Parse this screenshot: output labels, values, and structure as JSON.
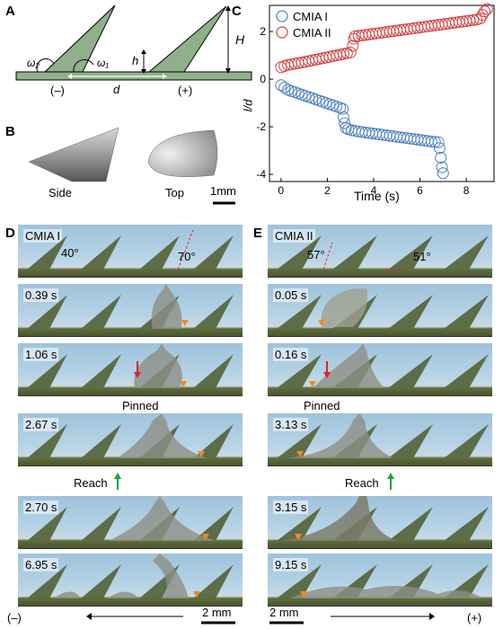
{
  "panels": {
    "a": "A",
    "b": "B",
    "c": "C",
    "d": "D",
    "e": "E"
  },
  "panel_a": {
    "omega2": "ω₂",
    "omega1": "ω₁",
    "h": "h",
    "H": "H",
    "d": "d",
    "minus": "(–)",
    "plus": "(+)"
  },
  "panel_b": {
    "side": "Side",
    "top": "Top",
    "scale": "1mm"
  },
  "chart_data": {
    "type": "scatter",
    "xlabel": "Time (s)",
    "ylabel": "l/d",
    "xlim": [
      -0.5,
      9.2
    ],
    "ylim": [
      -4.3,
      3.1
    ],
    "xticks": [
      0,
      2,
      4,
      6,
      8
    ],
    "yticks": [
      -4,
      -2,
      0,
      2
    ],
    "legend_position": "top-left",
    "series": [
      {
        "name": "CMIA I",
        "color": "#4f7fbf",
        "points": [
          [
            0.0,
            -0.25
          ],
          [
            0.15,
            -0.35
          ],
          [
            0.3,
            -0.45
          ],
          [
            0.45,
            -0.5
          ],
          [
            0.6,
            -0.55
          ],
          [
            0.75,
            -0.6
          ],
          [
            0.9,
            -0.65
          ],
          [
            1.05,
            -0.7
          ],
          [
            1.2,
            -0.75
          ],
          [
            1.35,
            -0.8
          ],
          [
            1.5,
            -0.85
          ],
          [
            1.65,
            -0.9
          ],
          [
            1.8,
            -0.95
          ],
          [
            1.95,
            -1.0
          ],
          [
            2.1,
            -1.05
          ],
          [
            2.25,
            -1.1
          ],
          [
            2.4,
            -1.15
          ],
          [
            2.55,
            -1.2
          ],
          [
            2.67,
            -1.25
          ],
          [
            2.7,
            -1.6
          ],
          [
            2.75,
            -1.85
          ],
          [
            2.8,
            -2.05
          ],
          [
            2.9,
            -2.1
          ],
          [
            3.05,
            -2.15
          ],
          [
            3.2,
            -2.17
          ],
          [
            3.35,
            -2.2
          ],
          [
            3.5,
            -2.22
          ],
          [
            3.65,
            -2.24
          ],
          [
            3.8,
            -2.26
          ],
          [
            3.95,
            -2.28
          ],
          [
            4.1,
            -2.3
          ],
          [
            4.25,
            -2.32
          ],
          [
            4.4,
            -2.34
          ],
          [
            4.55,
            -2.36
          ],
          [
            4.7,
            -2.38
          ],
          [
            4.85,
            -2.4
          ],
          [
            5.0,
            -2.42
          ],
          [
            5.15,
            -2.44
          ],
          [
            5.3,
            -2.46
          ],
          [
            5.45,
            -2.48
          ],
          [
            5.6,
            -2.5
          ],
          [
            5.75,
            -2.52
          ],
          [
            5.9,
            -2.54
          ],
          [
            6.05,
            -2.56
          ],
          [
            6.2,
            -2.58
          ],
          [
            6.35,
            -2.6
          ],
          [
            6.5,
            -2.62
          ],
          [
            6.65,
            -2.64
          ],
          [
            6.8,
            -2.65
          ],
          [
            6.85,
            -2.9
          ],
          [
            6.9,
            -3.3
          ],
          [
            6.95,
            -3.7
          ],
          [
            7.0,
            -3.95
          ]
        ]
      },
      {
        "name": "CMIA II",
        "color": "#d04040",
        "points": [
          [
            0.0,
            0.5
          ],
          [
            0.15,
            0.55
          ],
          [
            0.3,
            0.6
          ],
          [
            0.45,
            0.62
          ],
          [
            0.6,
            0.65
          ],
          [
            0.75,
            0.68
          ],
          [
            0.9,
            0.7
          ],
          [
            1.05,
            0.73
          ],
          [
            1.2,
            0.76
          ],
          [
            1.35,
            0.79
          ],
          [
            1.5,
            0.82
          ],
          [
            1.65,
            0.85
          ],
          [
            1.8,
            0.88
          ],
          [
            1.95,
            0.91
          ],
          [
            2.1,
            0.94
          ],
          [
            2.25,
            0.97
          ],
          [
            2.4,
            1.0
          ],
          [
            2.55,
            1.03
          ],
          [
            2.7,
            1.06
          ],
          [
            2.85,
            1.09
          ],
          [
            3.0,
            1.12
          ],
          [
            3.1,
            1.4
          ],
          [
            3.15,
            1.7
          ],
          [
            3.2,
            1.8
          ],
          [
            3.35,
            1.82
          ],
          [
            3.5,
            1.84
          ],
          [
            3.65,
            1.86
          ],
          [
            3.8,
            1.88
          ],
          [
            3.95,
            1.9
          ],
          [
            4.1,
            1.92
          ],
          [
            4.25,
            1.94
          ],
          [
            4.4,
            1.96
          ],
          [
            4.55,
            1.98
          ],
          [
            4.7,
            2.0
          ],
          [
            4.85,
            2.02
          ],
          [
            5.0,
            2.04
          ],
          [
            5.15,
            2.06
          ],
          [
            5.3,
            2.08
          ],
          [
            5.45,
            2.1
          ],
          [
            5.6,
            2.12
          ],
          [
            5.75,
            2.14
          ],
          [
            5.9,
            2.16
          ],
          [
            6.05,
            2.18
          ],
          [
            6.2,
            2.2
          ],
          [
            6.35,
            2.22
          ],
          [
            6.5,
            2.24
          ],
          [
            6.65,
            2.26
          ],
          [
            6.8,
            2.28
          ],
          [
            6.95,
            2.3
          ],
          [
            7.1,
            2.32
          ],
          [
            7.25,
            2.34
          ],
          [
            7.4,
            2.36
          ],
          [
            7.55,
            2.38
          ],
          [
            7.7,
            2.4
          ],
          [
            7.85,
            2.42
          ],
          [
            8.0,
            2.44
          ],
          [
            8.15,
            2.46
          ],
          [
            8.3,
            2.48
          ],
          [
            8.45,
            2.5
          ],
          [
            8.6,
            2.55
          ],
          [
            8.7,
            2.7
          ],
          [
            8.8,
            2.85
          ],
          [
            8.9,
            2.95
          ]
        ]
      }
    ]
  },
  "panel_d": {
    "title": "CMIA I",
    "angle_left": "40°",
    "angle_right": "70°",
    "times": [
      "0.39 s",
      "1.06 s",
      "2.67 s",
      "2.70 s",
      "6.95 s"
    ],
    "pinned": "Pinned",
    "reach": "Reach",
    "minus": "(–)",
    "scale": "2 mm"
  },
  "panel_e": {
    "title": "CMIA II",
    "angle_left": "57°",
    "angle_right": "51°",
    "times": [
      "0.05 s",
      "0.16 s",
      "3.13 s",
      "3.15 s",
      "9.15 s"
    ],
    "pinned": "Pinned",
    "reach": "Reach",
    "plus": "(+)",
    "scale": "2 mm"
  }
}
